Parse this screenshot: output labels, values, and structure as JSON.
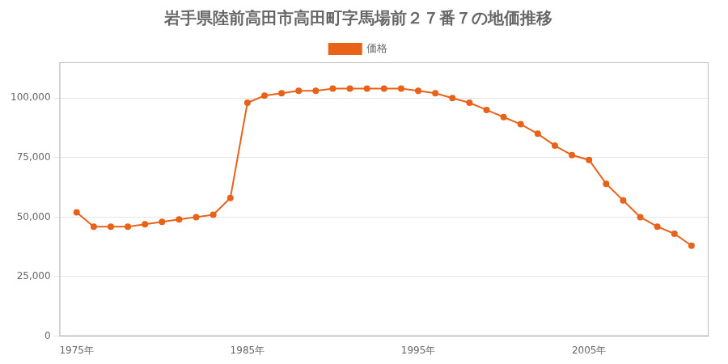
{
  "chart_data": {
    "type": "line",
    "title": "岩手県陸前高田市高田町字馬場前２７番７の地価推移",
    "x": [
      1975,
      1976,
      1977,
      1978,
      1979,
      1980,
      1981,
      1982,
      1983,
      1984,
      1985,
      1986,
      1987,
      1988,
      1989,
      1990,
      1991,
      1992,
      1993,
      1994,
      1995,
      1996,
      1997,
      1998,
      1999,
      2000,
      2001,
      2002,
      2003,
      2004,
      2005,
      2006,
      2007,
      2008,
      2009,
      2010,
      2011
    ],
    "series": [
      {
        "name": "価格",
        "color": "#E8621A",
        "marker": "circle",
        "values": [
          52000,
          46000,
          46000,
          46000,
          47000,
          48000,
          49000,
          50000,
          51000,
          58000,
          98000,
          101000,
          102000,
          103000,
          103000,
          104000,
          104000,
          104000,
          104000,
          104000,
          103000,
          102000,
          100000,
          98000,
          95000,
          92000,
          89000,
          85000,
          80000,
          76000,
          74000,
          64000,
          57000,
          50000,
          46000,
          43000,
          38000
        ]
      }
    ],
    "xlim": [
      1974,
      2012
    ],
    "xticks": [
      {
        "value": 1975,
        "label": "1975年"
      },
      {
        "value": 1985,
        "label": "1985年"
      },
      {
        "value": 1995,
        "label": "1995年"
      },
      {
        "value": 2005,
        "label": "2005年"
      }
    ],
    "ylim": [
      0,
      115000
    ],
    "yticks": [
      0,
      {
        "value": 25000,
        "label": "25,000"
      },
      {
        "value": 50000,
        "label": "50,000"
      },
      {
        "value": 75000,
        "label": "75,000"
      },
      {
        "value": 100000,
        "label": "100,000"
      }
    ],
    "grid": "y",
    "legend": "top"
  }
}
